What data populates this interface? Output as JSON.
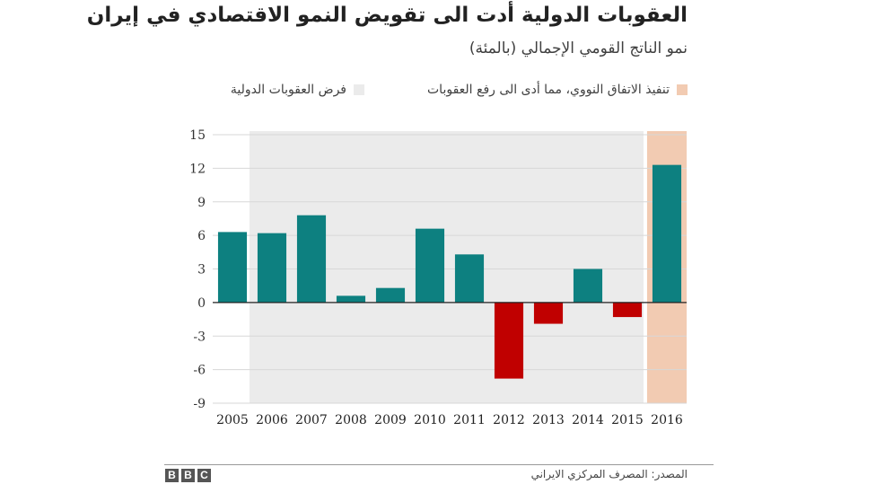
{
  "colors": {
    "positive": "#0d8080",
    "negative": "#c00000",
    "sanctions_band": "#ebebeb",
    "deal_band": "#f2cbb2",
    "grid": "#d7d7d7",
    "zero_line": "#222222"
  },
  "chart_data": {
    "type": "bar",
    "title": "العقوبات الدولية أدت الى تقويض النمو الاقتصادي في إيران",
    "subtitle": "نمو الناتج القومي الإجمالي (بالمئة)",
    "categories": [
      "2005",
      "2006",
      "2007",
      "2008",
      "2009",
      "2010",
      "2011",
      "2012",
      "2013",
      "2014",
      "2015",
      "2016"
    ],
    "values": [
      6.3,
      6.2,
      7.8,
      0.6,
      1.3,
      6.6,
      4.3,
      -6.8,
      -1.9,
      3.0,
      -1.3,
      12.3
    ],
    "ylim": [
      -9,
      15
    ],
    "yticks": [
      15,
      12,
      9,
      6,
      3,
      0,
      -3,
      -6,
      -9
    ],
    "grid": true,
    "legend": [
      {
        "label": "تنفيذ الاتفاق النووي، مما أدى الى رفع العقوبات",
        "color": "#f2cbb2"
      },
      {
        "label": "فرض العقوبات الدولية",
        "color": "#ebebeb"
      }
    ],
    "shaded_ranges": [
      {
        "name": "sanctions",
        "from": "2006",
        "to": "2015"
      },
      {
        "name": "deal",
        "from": "2016",
        "to": "2016"
      }
    ]
  },
  "footer": {
    "source": "المصدر: المصرف المركزي الايراني",
    "logo_letters": [
      "B",
      "B",
      "C"
    ]
  }
}
